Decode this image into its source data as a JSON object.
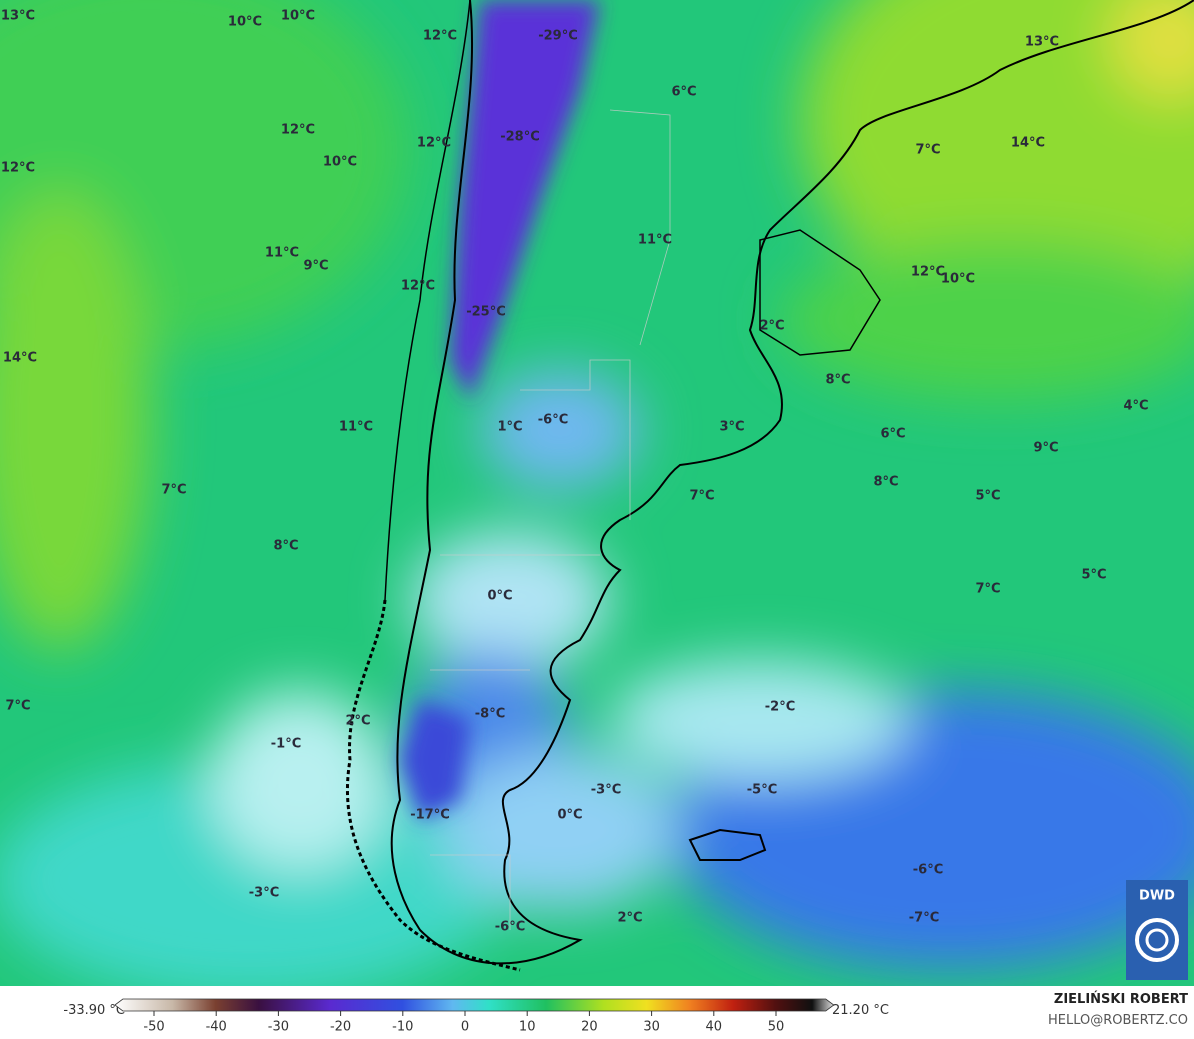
{
  "map_labels": [
    "13°C",
    "10°C",
    "10°C",
    "12°C",
    "-29°C",
    "6°C",
    "13°C",
    "12°C",
    "12°C",
    "-28°C",
    "10°C",
    "12°C",
    "7°C",
    "14°C",
    "11°C",
    "9°C",
    "11°C",
    "12°C",
    "12°C",
    "10°C",
    "-25°C",
    "2°C",
    "14°C",
    "8°C",
    "11°C",
    "1°C",
    "-6°C",
    "3°C",
    "6°C",
    "4°C",
    "9°C",
    "7°C",
    "8°C",
    "7°C",
    "5°C",
    "8°C",
    "0°C",
    "7°C",
    "5°C",
    "7°C",
    "2°C",
    "-8°C",
    "-2°C",
    "-1°C",
    "-3°C",
    "0°C",
    "-5°C",
    "-17°C",
    "-6°C",
    "-3°C",
    "2°C",
    "-7°C",
    "-6°C"
  ],
  "colorbar": {
    "min_label": "-33.90 °C",
    "max_label": "21.20 °C",
    "range": [
      -55,
      58
    ],
    "ticks": [
      -50,
      -40,
      -30,
      -20,
      -10,
      0,
      10,
      20,
      30,
      40,
      50
    ]
  },
  "credit": {
    "author": "ZIELIŃSKI ROBERT",
    "contact": "HELLO@ROBERTZ.CO"
  },
  "logo": "DWD"
}
